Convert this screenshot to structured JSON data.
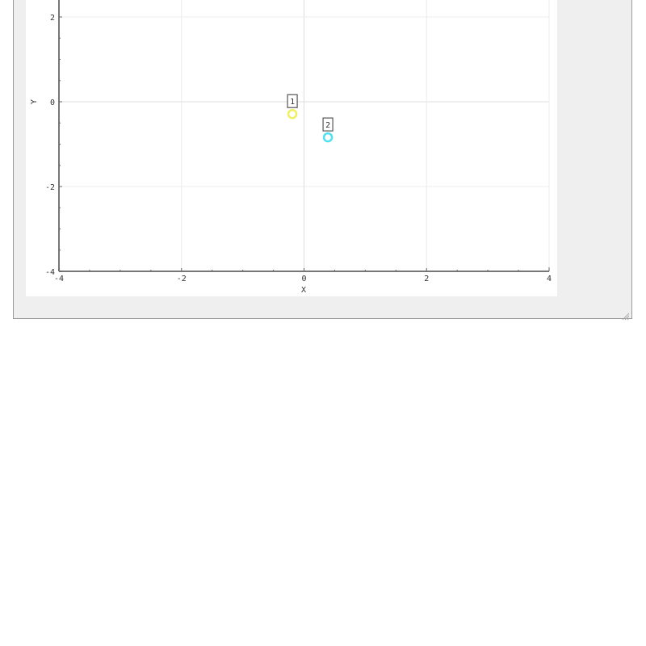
{
  "chart_data": {
    "type": "scatter",
    "xlabel": "X",
    "ylabel": "Y",
    "xlim": [
      -4,
      4
    ],
    "ylim": [
      -4,
      4
    ],
    "x_ticks": [
      "-4",
      "-2",
      "0",
      "2",
      "4"
    ],
    "y_ticks": [
      "-4",
      "-2",
      "0",
      "2"
    ],
    "grid": true,
    "points": [
      {
        "label": "1",
        "x": -0.19,
        "y": -0.29,
        "color": "#f0f060"
      },
      {
        "label": "2",
        "x": 0.39,
        "y": -0.84,
        "color": "#50e0f0"
      }
    ]
  }
}
